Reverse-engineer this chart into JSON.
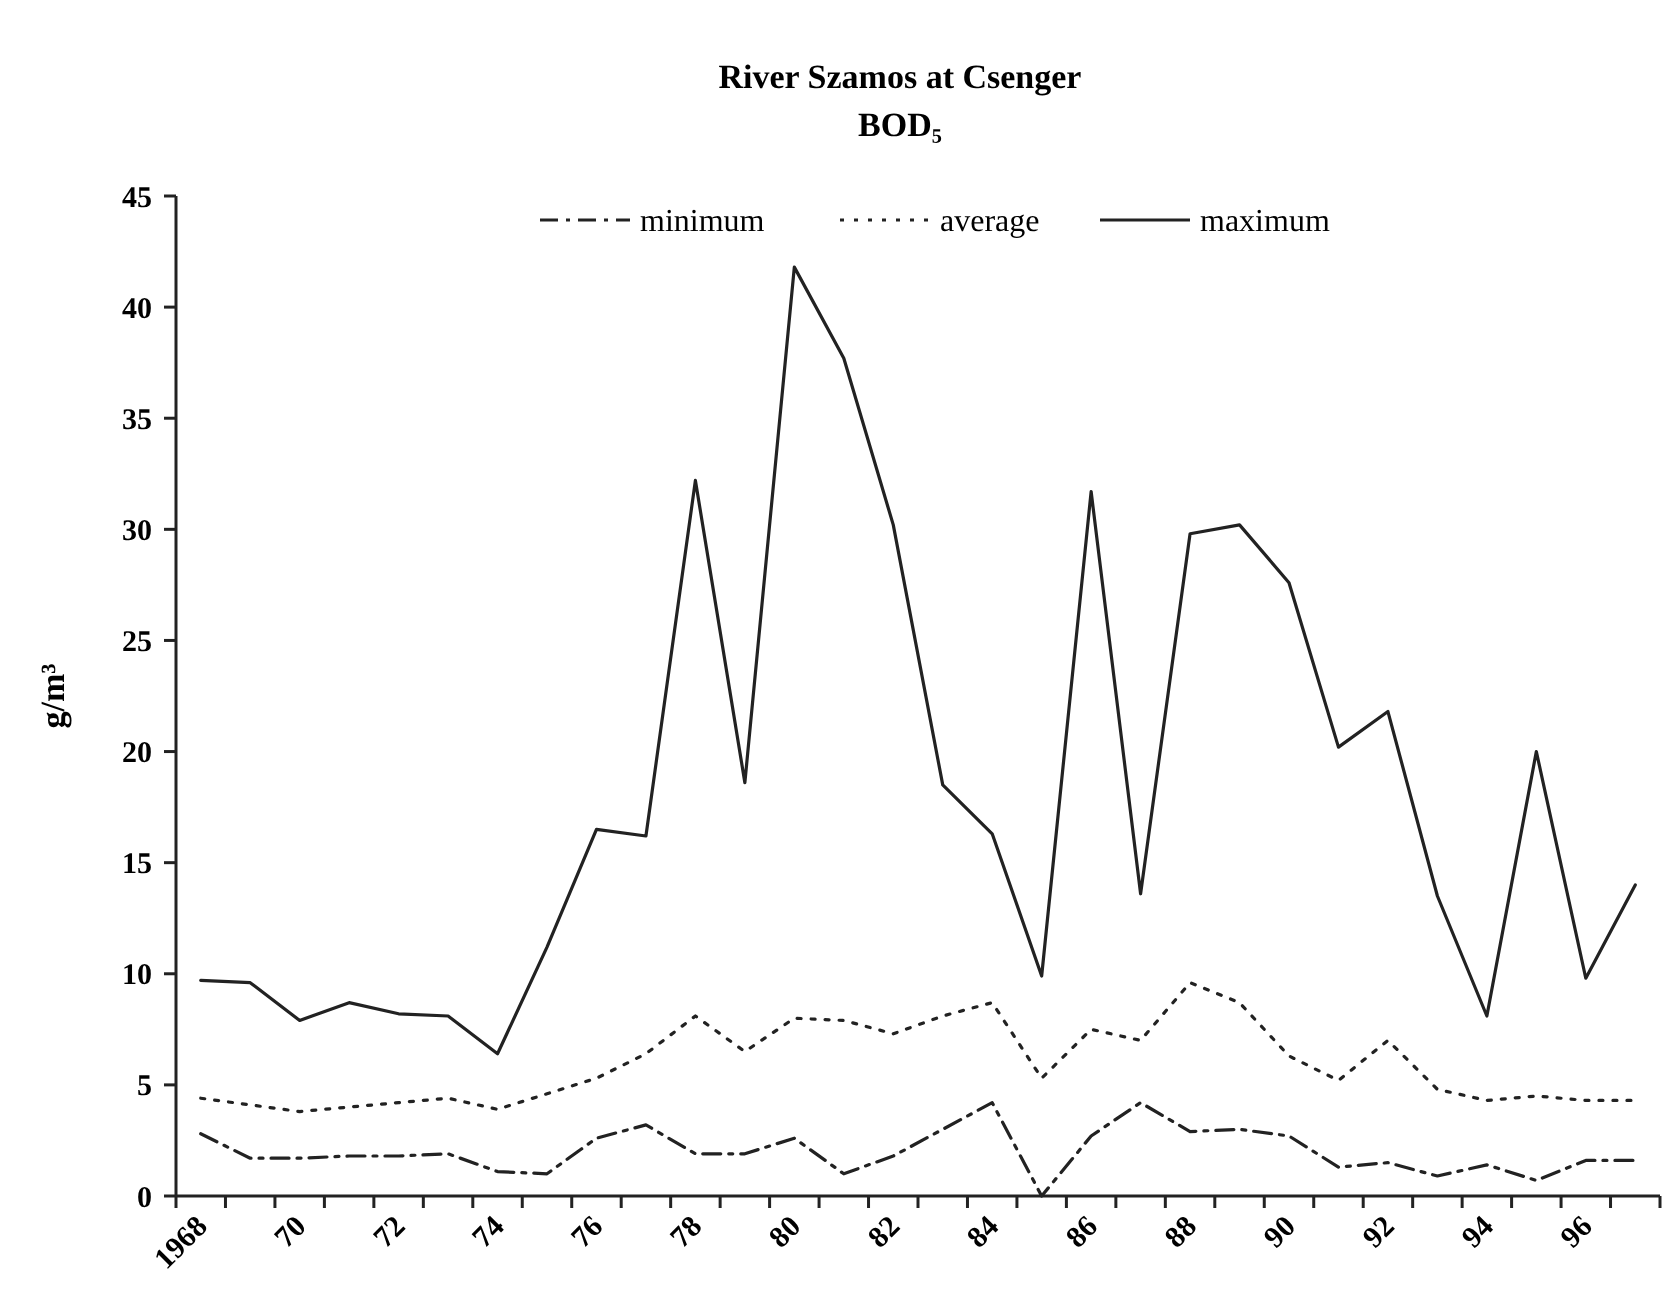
{
  "chart_data": {
    "type": "line",
    "title": "River Szamos at Csenger",
    "subtitle": "BOD₅",
    "ylabel": "g/m³",
    "categories": [
      "1968",
      null,
      "70",
      null,
      "72",
      null,
      "74",
      null,
      "76",
      null,
      "78",
      null,
      "80",
      null,
      "82",
      null,
      "84",
      null,
      "86",
      null,
      "88",
      null,
      "90",
      null,
      "92",
      null,
      "94",
      null,
      "96",
      null
    ],
    "ylim": [
      0,
      45
    ],
    "yticks": [
      0,
      5,
      10,
      15,
      20,
      25,
      30,
      35,
      40,
      45
    ],
    "grid": false,
    "legend": "top",
    "marker": "none",
    "series": [
      {
        "name": "minimum",
        "color": "#222222",
        "line_style": "dashed",
        "values": [
          2.8,
          1.7,
          1.7,
          1.8,
          1.8,
          1.9,
          1.1,
          1.0,
          2.6,
          3.2,
          1.9,
          1.9,
          2.6,
          1.0,
          1.8,
          3.0,
          4.2,
          0,
          2.7,
          4.2,
          2.9,
          3.0,
          2.7,
          1.3,
          1.5,
          0.9,
          1.4,
          0.7,
          1.6,
          1.6
        ]
      },
      {
        "name": "average",
        "color": "#222222",
        "line_style": "dotted",
        "values": [
          4.4,
          4.1,
          3.8,
          4.0,
          4.2,
          4.4,
          3.9,
          4.6,
          5.3,
          6.4,
          8.1,
          6.5,
          8.0,
          7.9,
          7.3,
          8.1,
          8.7,
          5.3,
          7.5,
          7.0,
          9.6,
          8.7,
          6.3,
          5.2,
          7.0,
          4.8,
          4.3,
          4.5,
          4.3,
          4.3
        ]
      },
      {
        "name": "maximum",
        "color": "#222222",
        "line_style": "solid",
        "values": [
          9.7,
          9.6,
          7.9,
          8.7,
          8.2,
          8.1,
          6.4,
          11.2,
          16.5,
          16.2,
          32.2,
          18.6,
          41.8,
          37.7,
          30.2,
          18.5,
          16.3,
          9.9,
          31.7,
          13.6,
          29.8,
          30.2,
          27.6,
          20.2,
          21.8,
          13.5,
          8.1,
          20.0,
          9.8,
          14.0
        ]
      }
    ]
  }
}
